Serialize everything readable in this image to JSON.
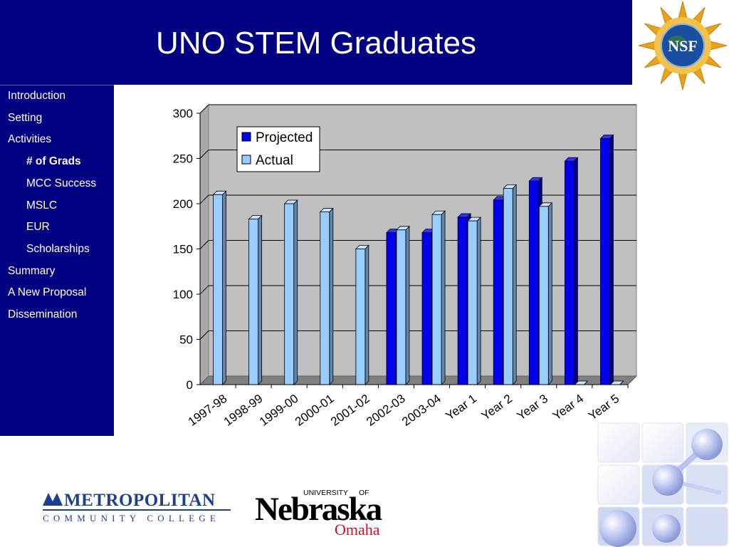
{
  "title": "UNO STEM Graduates",
  "sidebar": {
    "items": [
      {
        "label": "Introduction",
        "level": 0,
        "active": false
      },
      {
        "label": "Setting",
        "level": 0,
        "active": false
      },
      {
        "label": "Activities",
        "level": 0,
        "active": false
      },
      {
        "label": "# of Grads",
        "level": 1,
        "active": true
      },
      {
        "label": "MCC Success",
        "level": 1,
        "active": false
      },
      {
        "label": "MSLC",
        "level": 1,
        "active": false
      },
      {
        "label": "EUR",
        "level": 1,
        "active": false
      },
      {
        "label": "Scholarships",
        "level": 1,
        "active": false
      },
      {
        "label": "Summary",
        "level": 0,
        "active": false
      },
      {
        "label": "A New Proposal",
        "level": 0,
        "active": false
      },
      {
        "label": "Dissemination",
        "level": 0,
        "active": false
      }
    ]
  },
  "logos": {
    "nsf": "NSF",
    "mcc_line1": "METROPOLITAN",
    "mcc_line2": "COMMUNITY COLLEGE",
    "unl_university": "UNIVERSITY",
    "unl_of": "OF",
    "unl_name": "Nebraska",
    "unl_campus": "Omaha"
  },
  "colors": {
    "header_bg": "#000080",
    "projected": "#0000ee",
    "actual": "#99ccff",
    "plot_bg": "#c0c0c0"
  },
  "chart_data": {
    "type": "bar",
    "categories": [
      "1997-98",
      "1998-99",
      "1999-00",
      "2000-01",
      "2001-02",
      "2002-03",
      "2003-04",
      "Year 1",
      "Year 2",
      "Year 3",
      "Year 4",
      "Year 5"
    ],
    "series": [
      {
        "name": "Projected",
        "values": [
          null,
          null,
          null,
          null,
          null,
          168,
          168,
          185,
          204,
          225,
          247,
          272
        ]
      },
      {
        "name": "Actual",
        "values": [
          210,
          183,
          200,
          191,
          150,
          171,
          188,
          181,
          217,
          197,
          0,
          0
        ]
      }
    ],
    "ylim": [
      0,
      300
    ],
    "yticks": [
      0,
      50,
      100,
      150,
      200,
      250,
      300
    ],
    "legend": "top-left",
    "grid": true,
    "three_d": true
  }
}
